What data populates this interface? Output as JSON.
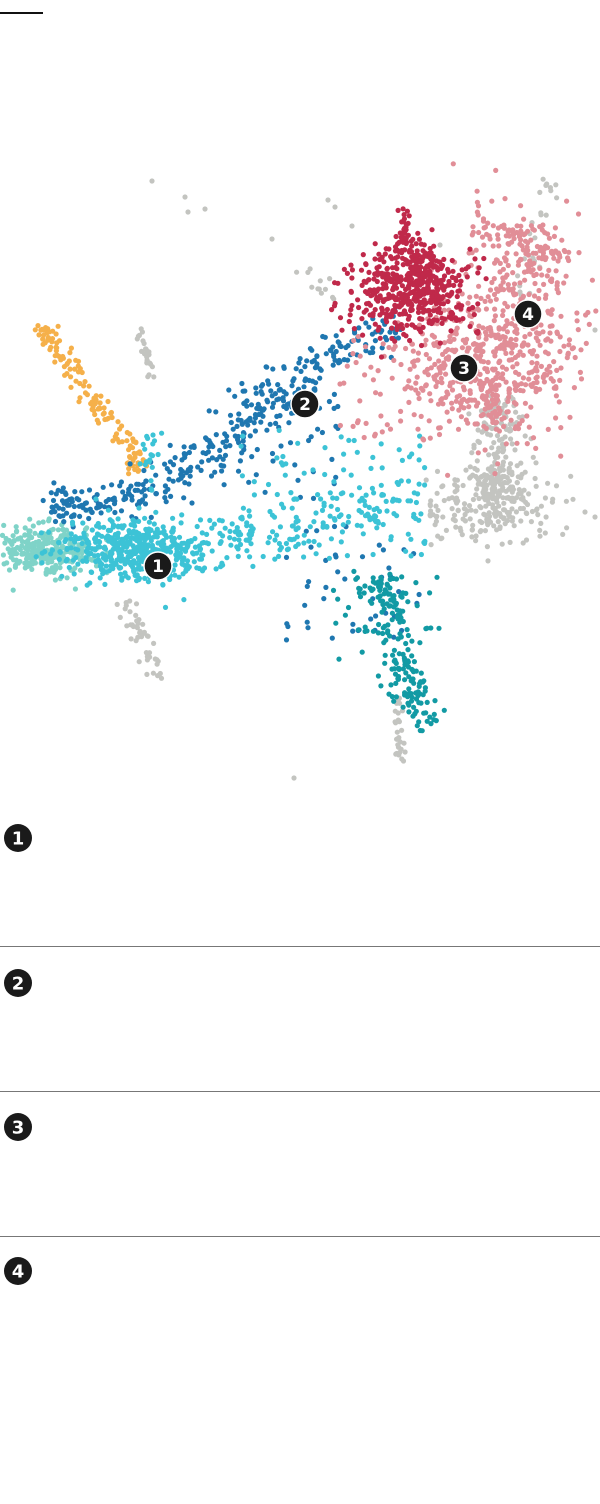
{
  "colors": {
    "cyan": "#3cc3d6",
    "mint": "#7fd3c8",
    "blue": "#1f77b0",
    "teal": "#129aa4",
    "orange": "#f5b04a",
    "red": "#c0294a",
    "pink": "#e18e97",
    "gray": "#c3c4c0",
    "marker": "#1a1a1a"
  },
  "markers": [
    "1",
    "2",
    "3",
    "4"
  ],
  "chart_data": {
    "type": "scatter",
    "title": "",
    "xlabel": "",
    "ylabel": "",
    "grid": false,
    "legend": "none",
    "clusters": [
      {
        "id": "1",
        "color": "cyan",
        "center": [
          150,
          550
        ],
        "count": 700
      },
      {
        "id": "2",
        "color": "blue",
        "center": [
          240,
          440
        ],
        "count": 420
      },
      {
        "id": "3",
        "color": "pink",
        "center": [
          465,
          370
        ],
        "count": 520
      },
      {
        "id": "4",
        "color": "pink",
        "center": [
          530,
          310
        ],
        "count": 380
      },
      {
        "id": "",
        "color": "red",
        "center": [
          415,
          290
        ],
        "count": 520
      },
      {
        "id": "",
        "color": "mint",
        "center": [
          45,
          550
        ],
        "count": 300
      },
      {
        "id": "",
        "color": "teal",
        "center": [
          400,
          650
        ],
        "count": 230
      },
      {
        "id": "",
        "color": "orange",
        "center": [
          85,
          400
        ],
        "count": 140
      },
      {
        "id": "",
        "color": "gray",
        "center": [
          490,
          490
        ],
        "count": 420
      }
    ],
    "marker_points": [
      {
        "label": "1",
        "x": 158,
        "y": 566
      },
      {
        "label": "2",
        "x": 305,
        "y": 404
      },
      {
        "label": "3",
        "x": 464,
        "y": 368
      },
      {
        "label": "4",
        "x": 528,
        "y": 314
      }
    ]
  }
}
